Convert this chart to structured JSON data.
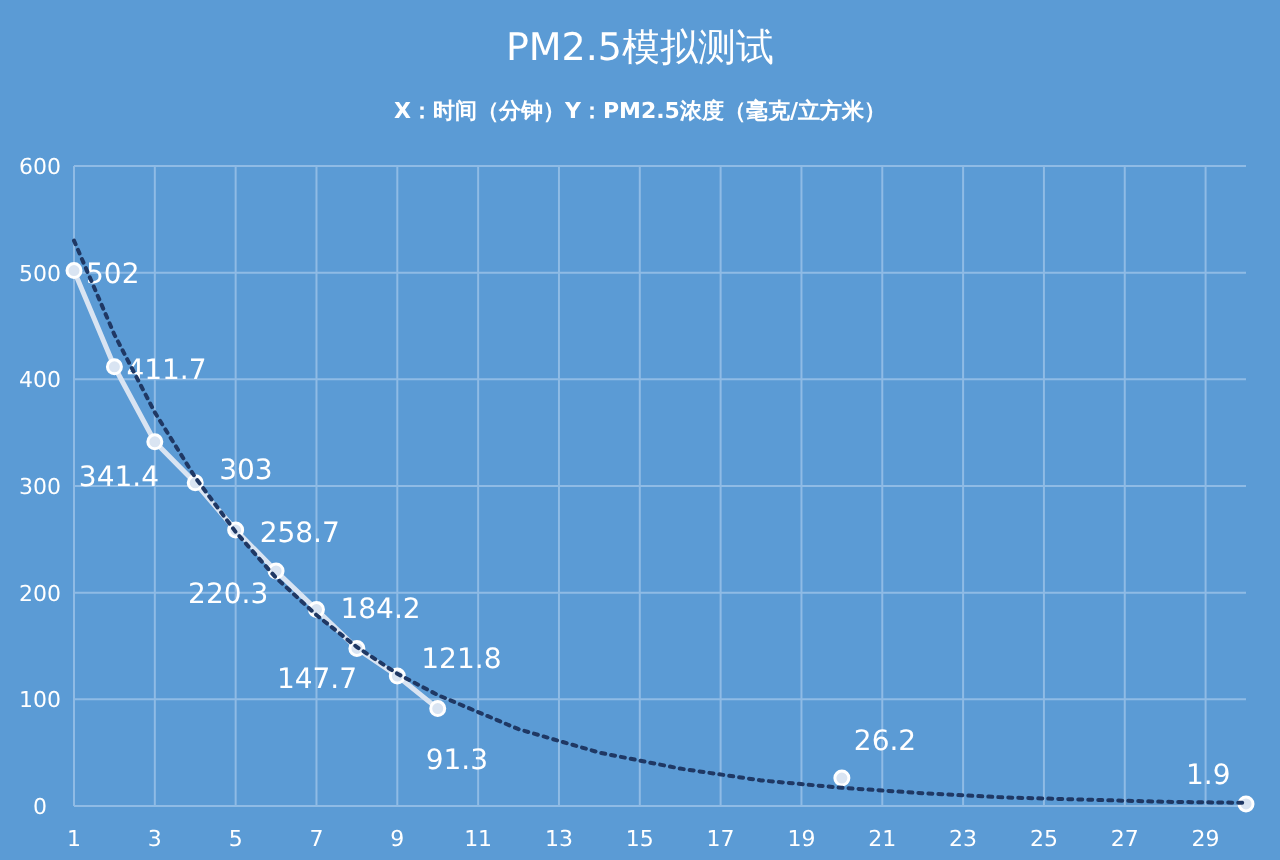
{
  "chart_data": {
    "type": "line",
    "title": "PM2.5模拟测试",
    "subtitle": "X：时间（分钟）Y：PM2.5浓度（毫克/立方米）",
    "xlim": [
      1,
      30
    ],
    "xticks": [
      1,
      3,
      5,
      7,
      9,
      11,
      13,
      15,
      17,
      19,
      21,
      23,
      25,
      27,
      29
    ],
    "ylim": [
      0,
      600
    ],
    "yticks": [
      0,
      100,
      200,
      300,
      400,
      500,
      600
    ],
    "grid": true,
    "series": [
      {
        "color": "#d9e4f2",
        "marker": "circle",
        "line_style": "solid",
        "data_labels": true,
        "x": [
          1,
          2,
          3,
          4,
          5,
          6,
          7,
          8,
          9,
          10
        ],
        "values": [
          502,
          411.7,
          341.4,
          303,
          258.7,
          220.3,
          184.2,
          147.7,
          121.8,
          91.3
        ]
      },
      {
        "type": "scatter",
        "color": "#d9e4f2",
        "marker": "circle",
        "data_labels": true,
        "x": [
          20,
          30
        ],
        "values": [
          26.2,
          1.9
        ]
      },
      {
        "color": "#1f3864",
        "marker": "none",
        "line_style": "dotted",
        "x": [
          1,
          2,
          3,
          4,
          5,
          6,
          7,
          8,
          9,
          10,
          12,
          14,
          16,
          18,
          20,
          22,
          24,
          26,
          28,
          30
        ],
        "values": [
          530,
          442,
          369,
          308,
          257,
          214,
          179,
          149,
          124,
          104,
          72,
          50,
          35,
          24,
          17,
          12,
          8,
          6,
          4,
          3
        ]
      }
    ]
  }
}
